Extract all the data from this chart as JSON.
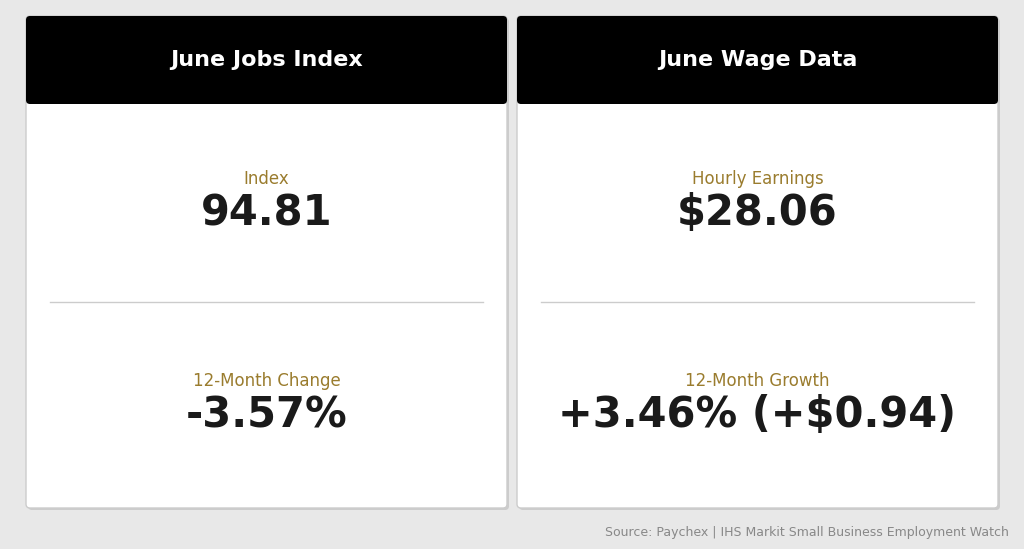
{
  "background_color": "#e8e8e8",
  "card_bg": "#ffffff",
  "header_bg": "#000000",
  "header_text_color": "#ffffff",
  "label_color": "#9a7c2e",
  "value_color": "#1a1a1a",
  "source_color": "#888888",
  "left_header": "June Jobs Index",
  "right_header": "June Wage Data",
  "left_label1": "Index",
  "left_value1": "94.81",
  "left_label2": "12-Month Change",
  "left_value2": "-3.57%",
  "right_label1": "Hourly Earnings",
  "right_value1": "$28.06",
  "right_label2": "12-Month Growth",
  "right_value2": "+3.46% (+$0.94)",
  "source_text": "Source: Paychex | IHS Markit Small Business Employment Watch",
  "header_fontsize": 16,
  "label_fontsize": 12,
  "value_fontsize": 30,
  "source_fontsize": 9,
  "divider_color": "#cccccc"
}
